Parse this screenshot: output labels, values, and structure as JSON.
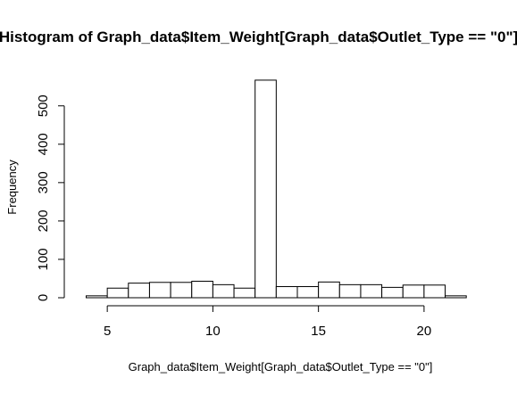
{
  "chart_data": {
    "type": "bar",
    "title": "Histogram of Graph_data$Item_Weight[Graph_data$Outlet_Type == \"0\"]",
    "xlabel": "Graph_data$Item_Weight[Graph_data$Outlet_Type == \"0\"]",
    "ylabel": "Frequency",
    "xlim": [
      4,
      22
    ],
    "ylim": [
      0,
      570
    ],
    "x_ticks": [
      5,
      10,
      15,
      20
    ],
    "y_ticks": [
      0,
      100,
      200,
      300,
      400,
      500
    ],
    "grid": false,
    "legend": "none",
    "bins": [
      {
        "start": 4,
        "end": 5,
        "count": 5
      },
      {
        "start": 5,
        "end": 6,
        "count": 25
      },
      {
        "start": 6,
        "end": 7,
        "count": 38
      },
      {
        "start": 7,
        "end": 8,
        "count": 40
      },
      {
        "start": 8,
        "end": 9,
        "count": 40
      },
      {
        "start": 9,
        "end": 10,
        "count": 43
      },
      {
        "start": 10,
        "end": 11,
        "count": 34
      },
      {
        "start": 11,
        "end": 12,
        "count": 25
      },
      {
        "start": 12,
        "end": 13,
        "count": 567
      },
      {
        "start": 13,
        "end": 14,
        "count": 29
      },
      {
        "start": 14,
        "end": 15,
        "count": 29
      },
      {
        "start": 15,
        "end": 16,
        "count": 41
      },
      {
        "start": 16,
        "end": 17,
        "count": 34
      },
      {
        "start": 17,
        "end": 18,
        "count": 34
      },
      {
        "start": 18,
        "end": 19,
        "count": 27
      },
      {
        "start": 19,
        "end": 20,
        "count": 33
      },
      {
        "start": 20,
        "end": 21,
        "count": 33
      },
      {
        "start": 21,
        "end": 22,
        "count": 5
      }
    ],
    "bar_fill": "#ffffff",
    "bar_stroke": "#000000"
  }
}
